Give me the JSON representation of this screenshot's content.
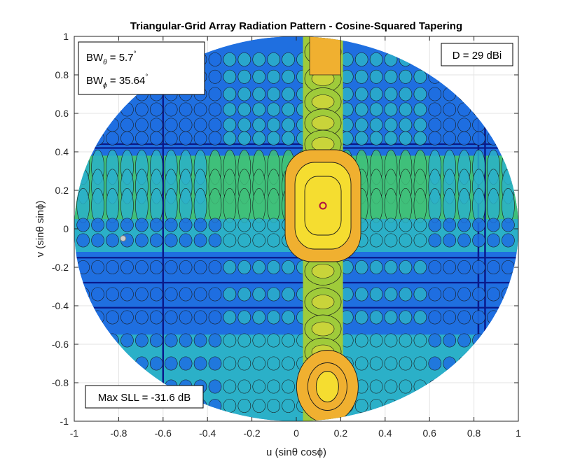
{
  "chart_data": {
    "type": "contour",
    "title": "Triangular-Grid Array Radiation Pattern - Cosine-Squared Tapering",
    "xlabel": "u (sinθ cosϕ)",
    "ylabel": "v (sinθ sinϕ)",
    "xlim": [
      -1,
      1
    ],
    "ylim": [
      -1,
      1
    ],
    "xticks": [
      "-1",
      "-0.8",
      "-0.6",
      "-0.4",
      "-0.2",
      "0",
      "0.2",
      "0.4",
      "0.6",
      "0.8",
      "1"
    ],
    "yticks": [
      "1",
      "0.8",
      "0.6",
      "0.4",
      "0.2",
      "0",
      "-0.2",
      "-0.4",
      "-0.6",
      "-0.8",
      "-1"
    ],
    "grid": true,
    "region": "unit circle u²+v²≤1",
    "main_beam": {
      "u": 0.12,
      "v": 0.12
    },
    "grating_lobe": {
      "u": 0.14,
      "v": -0.82
    },
    "max_sidelobe_marker": {
      "u": -0.78,
      "v": -0.05
    },
    "colors": {
      "null": "#0a1a8a",
      "low": "#1f6fe0",
      "mid_low": "#2bb0c8",
      "mid": "#3fc07a",
      "mid_high": "#9fcb3a",
      "high": "#f0b030",
      "peak": "#f5dd30",
      "beam_marker": "#b01040",
      "sll_marker": "#cccccc"
    }
  },
  "annotations": {
    "bw_theta": {
      "prefix": "BW",
      "sub": "θ",
      "value": " = 5.7",
      "sup": "°"
    },
    "bw_phi": {
      "prefix": "BW",
      "sub": "ϕ",
      "value": " = 35.64",
      "sup": "°"
    },
    "directivity": "D = 29 dBi",
    "max_sll": "Max SLL = -31.6 dB"
  }
}
